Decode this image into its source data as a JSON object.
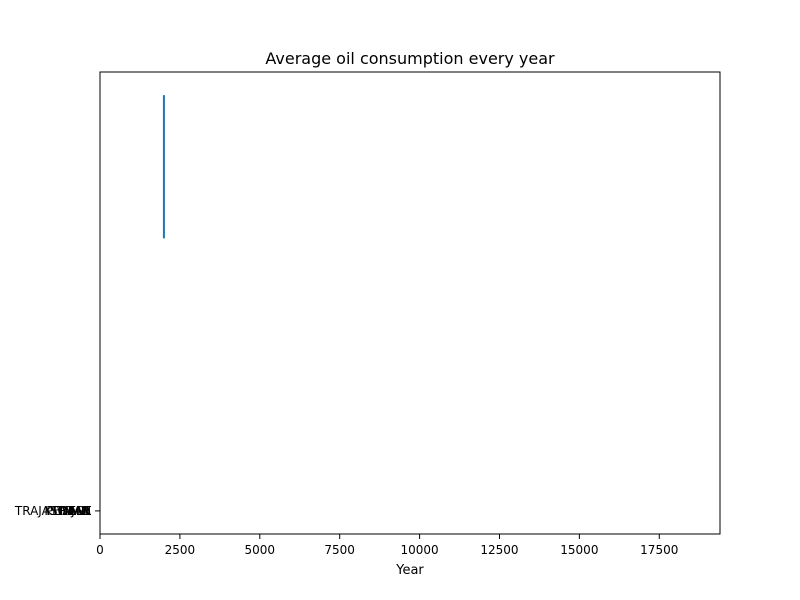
{
  "chart_data": {
    "type": "line",
    "title": "Average oil consumption every year",
    "xlabel": "Year",
    "ylabel": "",
    "xlim": [
      0,
      19400
    ],
    "x_ticks": [
      0,
      2500,
      5000,
      7500,
      10000,
      12500,
      15000,
      17500
    ],
    "x_tick_labels": [
      "0",
      "2500",
      "5000",
      "7500",
      "10000",
      "12500",
      "15000",
      "17500"
    ],
    "ylim": [
      0,
      1
    ],
    "y_tick_labels": [
      "TAH",
      "TRAJASTHAN",
      "WEST",
      "PUNJAB",
      "TAMIL",
      "KERALA"
    ],
    "y_tick_value": 0.05,
    "series": [
      {
        "color": "#1f77b4",
        "x": [
          2000,
          2000
        ],
        "y": [
          0.95,
          0.64
        ]
      }
    ],
    "grid": false,
    "legend": "none"
  }
}
